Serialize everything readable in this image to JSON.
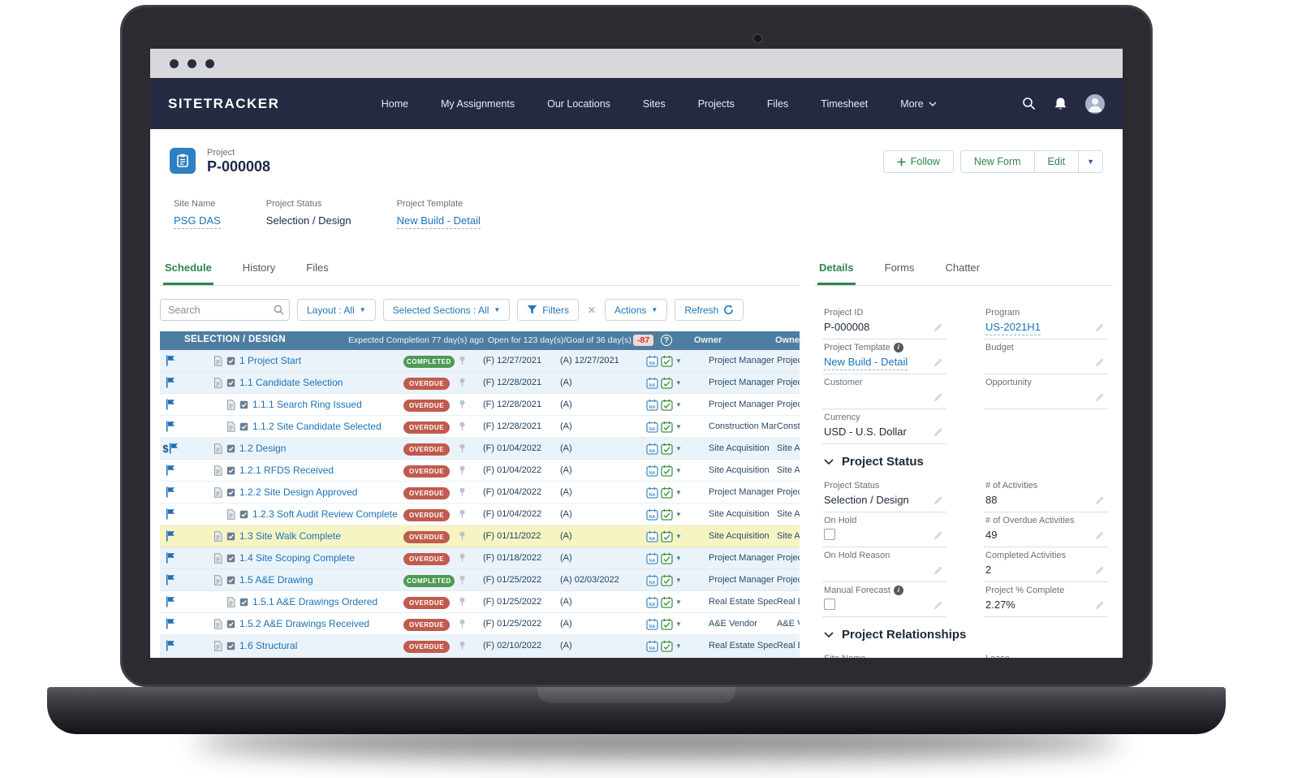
{
  "colors": {
    "navy": "#232a41",
    "steel_header": "#4d7ea1",
    "green": "#2e8549",
    "completed": "#4f9a55",
    "overdue": "#c05b4d",
    "link_blue": "#1a73b8"
  },
  "nav": {
    "brand": "SITETRACKER",
    "items": [
      "Home",
      "My Assignments",
      "Our Locations",
      "Sites",
      "Projects",
      "Files",
      "Timesheet"
    ],
    "more": "More"
  },
  "header": {
    "entity": "Project",
    "title": "P-000008",
    "follow": "Follow",
    "new_form": "New Form",
    "edit": "Edit"
  },
  "summary": [
    {
      "label": "Site Name",
      "value": "PSG DAS",
      "link": true
    },
    {
      "label": "Project Status",
      "value": "Selection / Design",
      "link": false
    },
    {
      "label": "Project Template",
      "value": "New Build - Detail",
      "link": true
    }
  ],
  "left_tabs": [
    "Schedule",
    "History",
    "Files"
  ],
  "right_tabs": [
    "Details",
    "Forms",
    "Chatter"
  ],
  "toolbar": {
    "search_placeholder": "Search",
    "layout": "Layout : All",
    "sections": "Selected Sections : All",
    "filters": "Filters",
    "actions": "Actions",
    "refresh": "Refresh"
  },
  "schedule": {
    "section_title": "SELECTION / DESIGN",
    "expected": "Expected Completion 77 day(s) ago",
    "open_goal": "Open for 123 day(s)/Goal of 36 day(s)",
    "delta": "-87",
    "owner_header": "Owner",
    "owner2_header": "Owner",
    "f_prefix": "(F)",
    "a_prefix": "(A)",
    "rows": [
      {
        "name": "1 Project Start",
        "level": 1,
        "status": "COMPLETED",
        "pin": false,
        "f": "12/27/2021",
        "a": "12/27/2021",
        "owner": "Project Manager",
        "gutter": null,
        "pre": null,
        "hl": false
      },
      {
        "name": "1.1 Candidate Selection",
        "level": 1,
        "status": "OVERDUE",
        "pin": true,
        "f": "12/28/2021",
        "a": "",
        "owner": "Project Manager",
        "gutter": null,
        "pre": null,
        "hl": false
      },
      {
        "name": "1.1.1 Search Ring Issued",
        "level": 2,
        "status": "OVERDUE",
        "pin": false,
        "f": "12/28/2021",
        "a": "",
        "owner": "Project Manager",
        "gutter": null,
        "pre": null,
        "hl": false
      },
      {
        "name": "1.1.2 Site Candidate Selected",
        "level": 2,
        "status": "OVERDUE",
        "pin": false,
        "f": "12/28/2021",
        "a": "",
        "owner": "Construction Man...",
        "gutter": null,
        "pre": null,
        "hl": false
      },
      {
        "name": "1.2 Design",
        "level": 1,
        "status": "OVERDUE",
        "pin": true,
        "f": "01/04/2022",
        "a": "",
        "owner": "Site Acquisition",
        "gutter": "dollar",
        "pre": null,
        "hl": false
      },
      {
        "name": "1.2.1 RFDS Received",
        "level": 2,
        "status": "OVERDUE",
        "pin": false,
        "f": "01/04/2022",
        "a": "",
        "owner": "Site Acquisition",
        "gutter": null,
        "pre": "doc",
        "hl": false
      },
      {
        "name": "1.2.2 Site Design Approved",
        "level": 2,
        "status": "OVERDUE",
        "pin": false,
        "f": "01/04/2022",
        "a": "",
        "owner": "Project Manager",
        "gutter": null,
        "pre": "check",
        "hl": false
      },
      {
        "name": "1.2.3 Soft Audit Review Complete",
        "level": 2,
        "status": "OVERDUE",
        "pin": false,
        "f": "01/04/2022",
        "a": "",
        "owner": "Site Acquisition",
        "gutter": null,
        "pre": null,
        "hl": false
      },
      {
        "name": "1.3 Site Walk Complete",
        "level": 1,
        "status": "OVERDUE",
        "pin": true,
        "f": "01/11/2022",
        "a": "",
        "owner": "Site Acquisition",
        "gutter": null,
        "pre": null,
        "hl": true
      },
      {
        "name": "1.4 Site Scoping Complete",
        "level": 1,
        "status": "OVERDUE",
        "pin": true,
        "f": "01/18/2022",
        "a": "",
        "owner": "Project Manager",
        "gutter": "flag",
        "pre": null,
        "hl": false
      },
      {
        "name": "1.5 A&E Drawing",
        "level": 1,
        "status": "COMPLETED",
        "pin": true,
        "f": "01/25/2022",
        "a": "02/03/2022",
        "owner": "Project Manager",
        "gutter": null,
        "pre": null,
        "hl": false
      },
      {
        "name": "1.5.1 A&E Drawings Ordered",
        "level": 2,
        "status": "OVERDUE",
        "pin": false,
        "f": "01/25/2022",
        "a": "",
        "owner": "Real Estate Speci...",
        "gutter": null,
        "pre": null,
        "hl": false
      },
      {
        "name": "1.5.2 A&E Drawings Received",
        "level": 2,
        "status": "OVERDUE",
        "pin": false,
        "f": "01/25/2022",
        "a": "",
        "owner": "A&E Vendor",
        "gutter": null,
        "pre": "doc",
        "hl": false
      },
      {
        "name": "1.6 Structural",
        "level": 1,
        "status": "OVERDUE",
        "pin": true,
        "f": "02/10/2022",
        "a": "",
        "owner": "Real Estate Speci...",
        "gutter": null,
        "pre": null,
        "hl": false
      }
    ]
  },
  "details": {
    "sections": [
      {
        "title": null,
        "rows": [
          [
            {
              "label": "Project ID",
              "value": "P-000008"
            },
            {
              "label": "Program",
              "value": "US-2021H1",
              "link": true
            }
          ],
          [
            {
              "label": "Project Template",
              "value": "New Build - Detail",
              "link": true,
              "info": true,
              "pencil": true
            },
            {
              "label": "Budget",
              "value": "",
              "pencil": true
            }
          ],
          [
            {
              "label": "Customer",
              "value": "",
              "pencil": true
            },
            {
              "label": "Opportunity",
              "value": "",
              "pencil": true
            }
          ],
          [
            {
              "label": "Currency",
              "value": "USD - U.S. Dollar",
              "pencil": true
            },
            null
          ]
        ]
      },
      {
        "title": "Project Status",
        "rows": [
          [
            {
              "label": "Project Status",
              "value": "Selection / Design",
              "pencil": true
            },
            {
              "label": "# of Activities",
              "value": "88"
            }
          ],
          [
            {
              "label": "On Hold",
              "checkbox": true,
              "pencil": true
            },
            {
              "label": "# of Overdue Activities",
              "value": "49"
            }
          ],
          [
            {
              "label": "On Hold Reason",
              "value": "",
              "pencil": true
            },
            {
              "label": "Completed Activities",
              "value": "2"
            }
          ],
          [
            {
              "label": "Manual Forecast",
              "checkbox": true,
              "info": true,
              "pencil": true
            },
            {
              "label": "Project % Complete",
              "value": "2.27%"
            }
          ]
        ]
      },
      {
        "title": "Project Relationships",
        "rows": [
          [
            {
              "label": "Site Name",
              "value": ""
            },
            {
              "label": "Lease",
              "value": ""
            }
          ]
        ]
      }
    ]
  }
}
